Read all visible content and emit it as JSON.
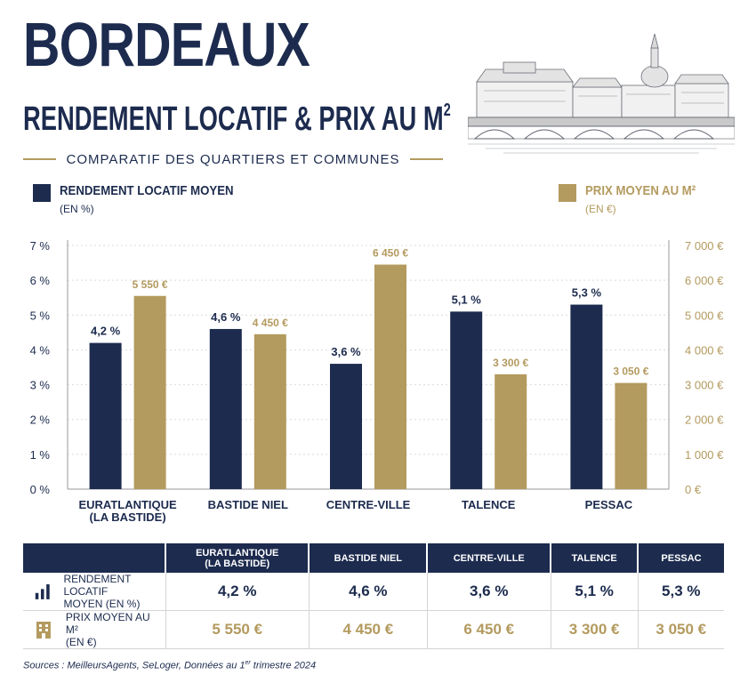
{
  "header": {
    "title": "BORDEAUX",
    "subtitle_main": "RENDEMENT LOCATIF & PRIX AU M",
    "subtitle_sup": "2",
    "tagline": "COMPARATIF DES QUARTIERS ET COMMUNES"
  },
  "legend": {
    "left": {
      "title": "RENDEMENT LOCATIF MOYEN",
      "sub": "(EN %)"
    },
    "right": {
      "title": "PRIX MOYEN AU M²",
      "sub": "(EN €)"
    }
  },
  "colors": {
    "navy": "#1c2b4e",
    "gold": "#b39a5e"
  },
  "chart_data": {
    "type": "bar",
    "categories": [
      "EURATLANTIQUE (LA BASTIDE)",
      "BASTIDE NIEL",
      "CENTRE-VILLE",
      "TALENCE",
      "PESSAC"
    ],
    "category_labels": [
      [
        "EURATLANTIQUE",
        "(LA BASTIDE)"
      ],
      [
        "BASTIDE NIEL"
      ],
      [
        "CENTRE-VILLE"
      ],
      [
        "TALENCE"
      ],
      [
        "PESSAC"
      ]
    ],
    "series": [
      {
        "name": "RENDEMENT LOCATIF MOYEN",
        "axis": "left",
        "values": [
          4.2,
          4.6,
          3.6,
          5.1,
          5.3
        ],
        "labels": [
          "4,2 %",
          "4,6 %",
          "3,6 %",
          "5,1 %",
          "5,3 %"
        ],
        "color": "#1c2b4e"
      },
      {
        "name": "PRIX MOYEN AU M²",
        "axis": "right",
        "values": [
          5550,
          4450,
          6450,
          3300,
          3050
        ],
        "labels": [
          "5 550 €",
          "4 450 €",
          "6 450 €",
          "3 300 €",
          "3 050 €"
        ],
        "color": "#b39a5e"
      }
    ],
    "ylim_left": [
      0,
      7
    ],
    "ylim_right": [
      0,
      7000
    ],
    "yticks_left": [
      "0 %",
      "1 %",
      "2 %",
      "3 %",
      "4 %",
      "5 %",
      "6 %",
      "7 %"
    ],
    "yticks_right": [
      "0 €",
      "1 000 €",
      "2 000 €",
      "3 000 €",
      "4 000 €",
      "5 000 €",
      "6 000 €",
      "7 000 €"
    ],
    "grid": true
  },
  "table": {
    "headers": [
      [
        "EURATLANTIQUE",
        "(LA BASTIDE)"
      ],
      [
        "BASTIDE NIEL"
      ],
      [
        "CENTRE-VILLE"
      ],
      [
        "TALENCE"
      ],
      [
        "PESSAC"
      ]
    ],
    "rows": [
      {
        "label_1": "RENDEMENT LOCATIF",
        "label_2": "MOYEN (EN %)",
        "icon": "bar-chart-icon",
        "values": [
          "4,2 %",
          "4,6 %",
          "3,6 %",
          "5,1 %",
          "5,3 %"
        ]
      },
      {
        "label_1": "PRIX MOYEN AU M²",
        "label_2": "(EN €)",
        "icon": "building-icon",
        "values": [
          "5 550 €",
          "4 450 €",
          "6 450 €",
          "3 300 €",
          "3 050 €"
        ]
      }
    ]
  },
  "footer": {
    "sources_before": "Sources : MeilleursAgents, SeLoger, Données au 1",
    "sources_sup": "er",
    "sources_after": " trimestre 2024"
  }
}
